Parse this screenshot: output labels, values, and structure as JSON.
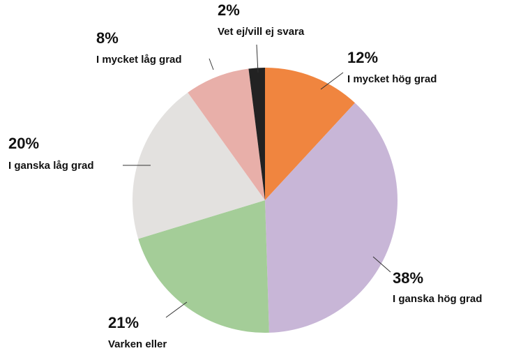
{
  "chart_data": {
    "type": "pie",
    "categories": [
      "I mycket hög grad",
      "I ganska hög grad",
      "Varken eller",
      "I ganska låg grad",
      "I mycket låg grad",
      "Vet ej/vill ej svara"
    ],
    "values": [
      12,
      38,
      21,
      20,
      8,
      2
    ],
    "value_labels": [
      "12%",
      "38%",
      "21%",
      "20%",
      "8%",
      "2%"
    ],
    "colors": [
      "#f0853f",
      "#c8b6d7",
      "#a4cd98",
      "#e3e1df",
      "#e8afa9",
      "#222222"
    ]
  }
}
